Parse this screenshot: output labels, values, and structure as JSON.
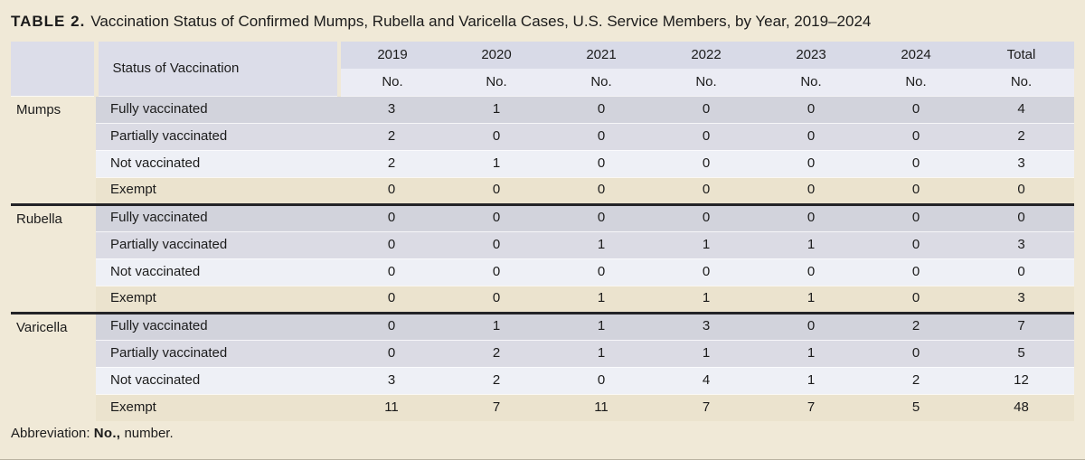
{
  "title": {
    "label": "TABLE 2.",
    "text": "Vaccination Status of Confirmed Mumps, Rubella and Varicella Cases, U.S. Service Members, by Year, 2019–2024"
  },
  "table": {
    "status_header": "Status of Vaccination",
    "year_headers": [
      "2019",
      "2020",
      "2021",
      "2022",
      "2023",
      "2024",
      "Total"
    ],
    "unit_label": "No.",
    "groups": [
      {
        "name": "Mumps",
        "rows": [
          {
            "label": "Fully vaccinated",
            "values": [
              3,
              1,
              0,
              0,
              0,
              0,
              4
            ]
          },
          {
            "label": "Partially vaccinated",
            "values": [
              2,
              0,
              0,
              0,
              0,
              0,
              2
            ]
          },
          {
            "label": "Not vaccinated",
            "values": [
              2,
              1,
              0,
              0,
              0,
              0,
              3
            ]
          },
          {
            "label": "Exempt",
            "values": [
              0,
              0,
              0,
              0,
              0,
              0,
              0
            ]
          }
        ]
      },
      {
        "name": "Rubella",
        "rows": [
          {
            "label": "Fully vaccinated",
            "values": [
              0,
              0,
              0,
              0,
              0,
              0,
              0
            ]
          },
          {
            "label": "Partially vaccinated",
            "values": [
              0,
              0,
              1,
              1,
              1,
              0,
              3
            ]
          },
          {
            "label": "Not vaccinated",
            "values": [
              0,
              0,
              0,
              0,
              0,
              0,
              0
            ]
          },
          {
            "label": "Exempt",
            "values": [
              0,
              0,
              1,
              1,
              1,
              0,
              3
            ]
          }
        ]
      },
      {
        "name": "Varicella",
        "rows": [
          {
            "label": "Fully vaccinated",
            "values": [
              0,
              1,
              1,
              3,
              0,
              2,
              7
            ]
          },
          {
            "label": "Partially vaccinated",
            "values": [
              0,
              2,
              1,
              1,
              1,
              0,
              5
            ]
          },
          {
            "label": "Not vaccinated",
            "values": [
              3,
              2,
              0,
              4,
              1,
              2,
              12
            ]
          },
          {
            "label": "Exempt",
            "values": [
              11,
              7,
              11,
              7,
              7,
              5,
              48
            ]
          }
        ]
      }
    ]
  },
  "footnote": {
    "prefix": "Abbreviation:",
    "abbr": "No.,",
    "suffix": "number."
  },
  "colors": {
    "page_bg": "#f0e9d7",
    "text": "#1b1b1b",
    "header_bg": "#dcdde9",
    "year_row_bg": "#d8dae7",
    "unit_row_bg": "#ebecf4",
    "row_fully": "#d2d3dc",
    "row_partially": "#dbdbe4",
    "row_not": "#eef0f6",
    "row_exempt": "#ebe3ce",
    "separator": "#232327"
  }
}
